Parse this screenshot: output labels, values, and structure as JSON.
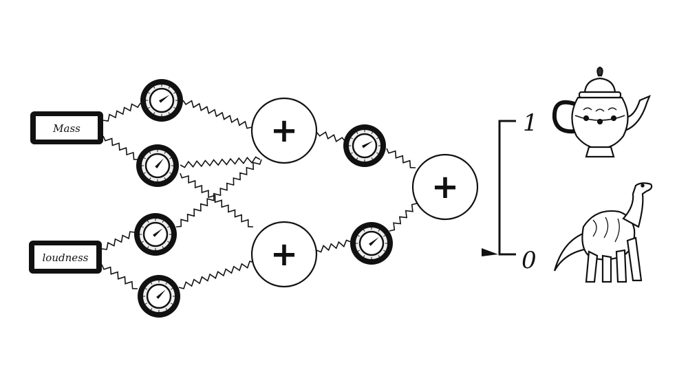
{
  "inputs": [
    {
      "label": "Mass"
    },
    {
      "label": "loudness"
    }
  ],
  "sum_symbol": "+",
  "output_scale": {
    "top_label": "1",
    "bottom_label": "0",
    "top_icon": "teapot-icon",
    "bottom_icon": "dinosaur-icon"
  },
  "colors": {
    "ink": "#111111",
    "paper": "#ffffff",
    "knob_face": "#eeeeee"
  }
}
